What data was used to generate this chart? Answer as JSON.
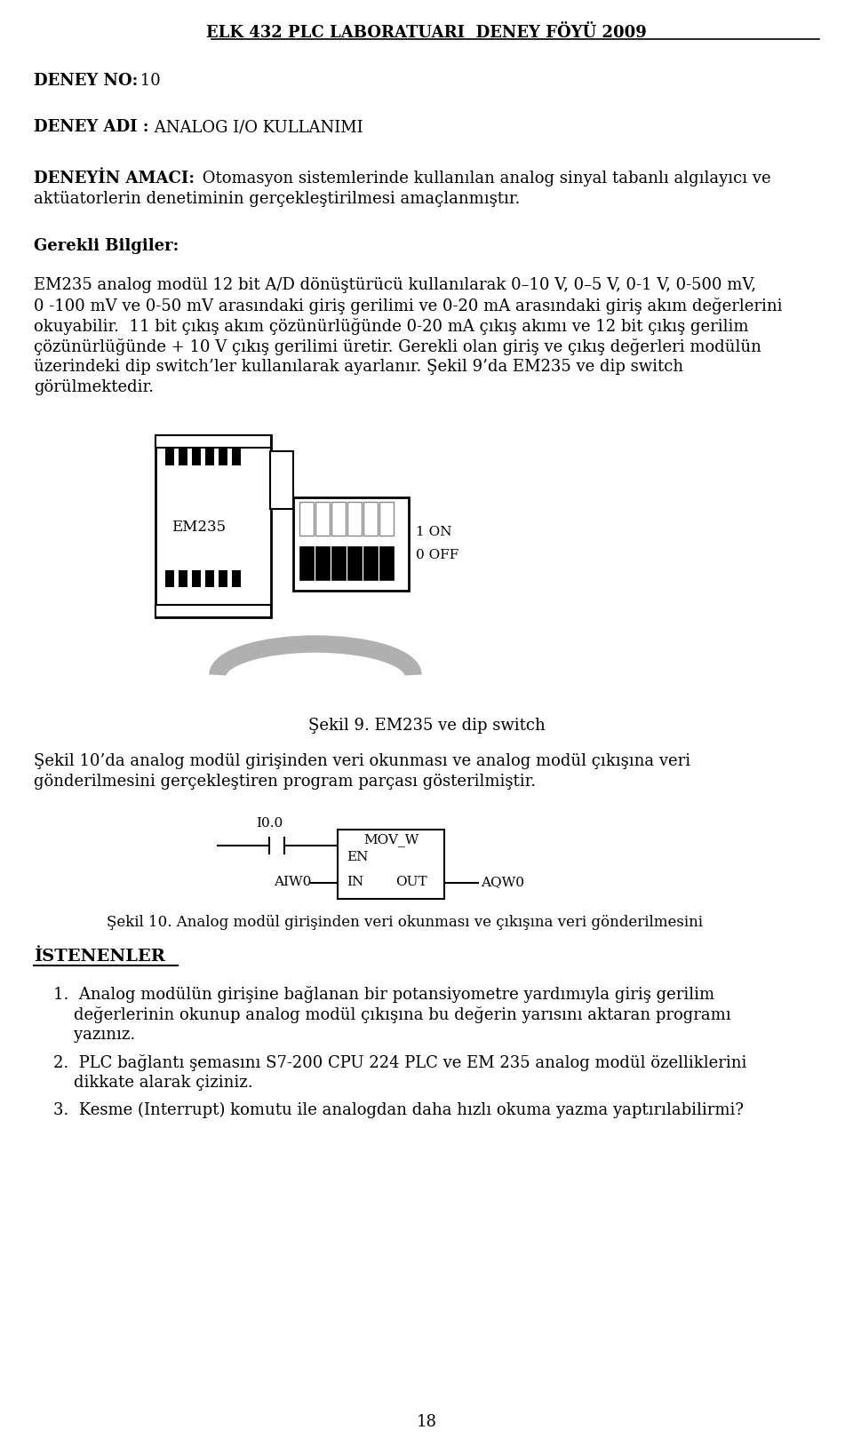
{
  "page_bg": "#ffffff",
  "header_text": "ELK 432 PLC LABORATUARI  DENEY FÖYÜ 2009",
  "body_lines": [
    "EM235 analog modül 12 bit A/D dönüştürücü kullanılarak 0–10 V, 0–5 V, 0-1 V, 0-500 mV,",
    "0 -100 mV ve 0-50 mV arasındaki giriş gerilimi ve 0-20 mA arasındaki giriş akım değerlerini",
    "okuyabilir.  11 bit çıkış akım çözünürlüğünde 0-20 mA çıkış akımı ve 12 bit çıkış gerilim",
    "çözünürlüğünde + 10 V çıkış gerilimi üretir. Gerekli olan giriş ve çıkış değerleri modülün",
    "üzerindeki dip switch’ler kullanılarak ayarlanır. Şekil 9’da EM235 ve dip switch",
    "görülmektedir."
  ],
  "figure9_caption": "Şekil 9. EM235 ve dip switch",
  "fig10_line1": "Şekil 10’da analog modül girişinden veri okunması ve analog modül çıkışına veri",
  "fig10_line2": "gönderilmesini gerçekleştiren program parçası gösterilmiştir.",
  "figure10_caption": "Şekil 10. Analog modül girişinden veri okunması ve çıkışına veri gönderilmesini",
  "istenenler_title": "İSTENENLER",
  "item_lines": [
    [
      "1.  Analog modülün girişine bağlanan bir potansiyometre yardımıyla giriş gerilim",
      "    değerlerinin okunup analog modül çıkışına bu değerin yarısını aktaran programı",
      "    yazınız."
    ],
    [
      "2.  PLC bağlantı şemasını S7-200 CPU 224 PLC ve EM 235 analog modül özelliklerini",
      "    dikkate alarak çiziniz."
    ],
    [
      "3.  Kesme (Interrupt) komutu ile analogdan daha hızlı okuma yazma yaptırılabilirmi?"
    ]
  ],
  "page_number": "18",
  "font_family": "serif"
}
